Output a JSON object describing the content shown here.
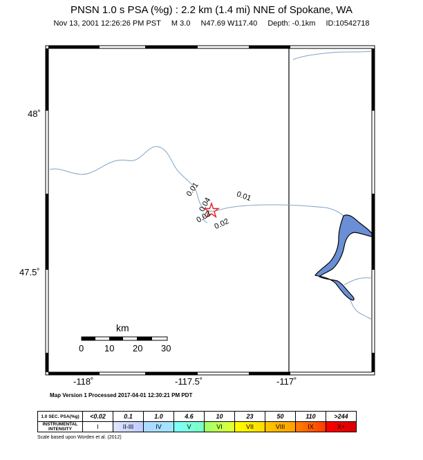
{
  "header": {
    "title": "PNSN 1.0 s PSA (%g) : 2.2 km (1.4 mi) NNE of Spokane, WA",
    "date": "Nov 13, 2001 12:26:26 PM PST",
    "magnitude": "M 3.0",
    "location": "N47.69 W117.40",
    "depth": "Depth: -0.1km",
    "event_id": "ID:10542718"
  },
  "map": {
    "lat_ticks": [
      "48˚",
      "47.5˚"
    ],
    "lon_ticks": [
      "-118˚",
      "-117.5˚",
      "-117˚"
    ],
    "contour_labels": [
      "0.01",
      "0.04",
      "0.03",
      "0.01",
      "0.02"
    ],
    "epicenter": "star",
    "colors": {
      "water": "#6b8fd6",
      "river": "#7fa3c7",
      "epicenter": "#e02020"
    }
  },
  "scale_bar": {
    "unit": "km",
    "labels": [
      "0",
      "10",
      "20",
      "30"
    ]
  },
  "processed": "Map Version 1 Processed 2017-04-01 12:30:21 PM PDT",
  "legend": {
    "row1_header": "1.0 SEC. PSA(%g)",
    "row2_header": "INSTRUMENTAL INTENSITY",
    "values": [
      "<0.02",
      "0.1",
      "1.0",
      "4.6",
      "10",
      "23",
      "50",
      "110",
      ">244"
    ],
    "intensities": [
      "I",
      "II-III",
      "IV",
      "V",
      "VI",
      "VII",
      "VIII",
      "IX",
      "X+"
    ],
    "colors": [
      "#ffffff",
      "#bfccff",
      "#a0e6ff",
      "#80ffff",
      "#7aff93",
      "#ffff00",
      "#ffc800",
      "#ff9100",
      "#ff0000",
      "#c80000"
    ]
  },
  "scale_note": "Scale based upon Worden et al. (2012)"
}
